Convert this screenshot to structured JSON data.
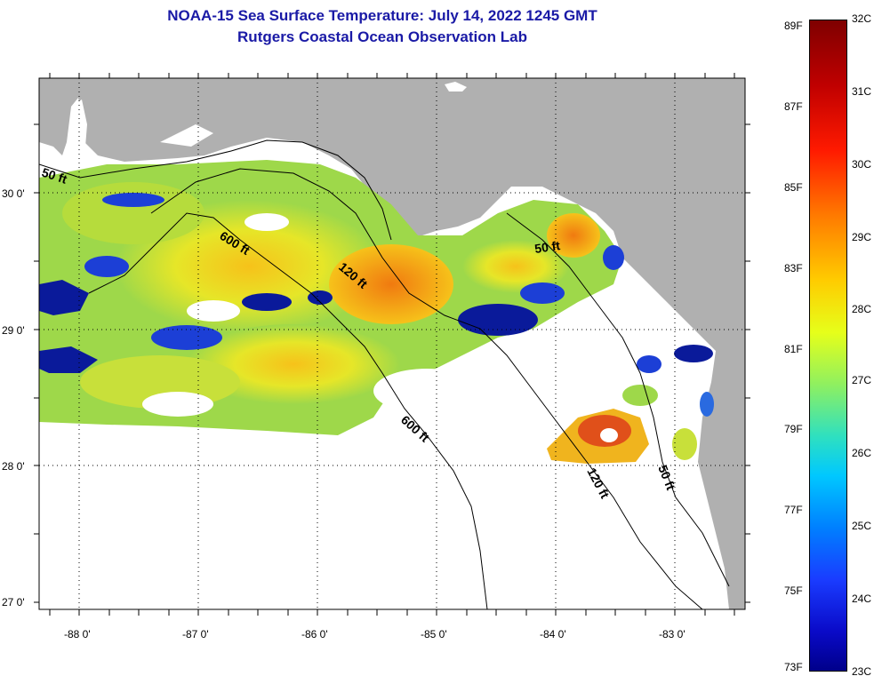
{
  "title": {
    "line1": "NOAA-15 Sea Surface Temperature:  July 14, 2022 1245 GMT",
    "line2": "Rutgers Coastal Ocean Observation Lab"
  },
  "axes": {
    "lat_labels": [
      "30 0'",
      "29 0'",
      "28 0'",
      "27 0'"
    ],
    "lon_labels": [
      "-88 0'",
      "-87 0'",
      "-86 0'",
      "-85 0'",
      "-84 0'",
      "-83 0'"
    ]
  },
  "contours": {
    "labels": [
      "50 ft",
      "600 ft",
      "120 ft",
      "50 ft",
      "600 ft",
      "120 ft",
      "50 ft"
    ]
  },
  "colorbar": {
    "f_labels": [
      "89F",
      "87F",
      "85F",
      "83F",
      "81F",
      "79F",
      "77F",
      "75F",
      "73F"
    ],
    "c_labels": [
      "32C",
      "31C",
      "30C",
      "29C",
      "28C",
      "27C",
      "26C",
      "25C",
      "24C",
      "23C"
    ]
  },
  "colors": {
    "land": "#b0b0b0",
    "title": "#1a1aa6"
  }
}
